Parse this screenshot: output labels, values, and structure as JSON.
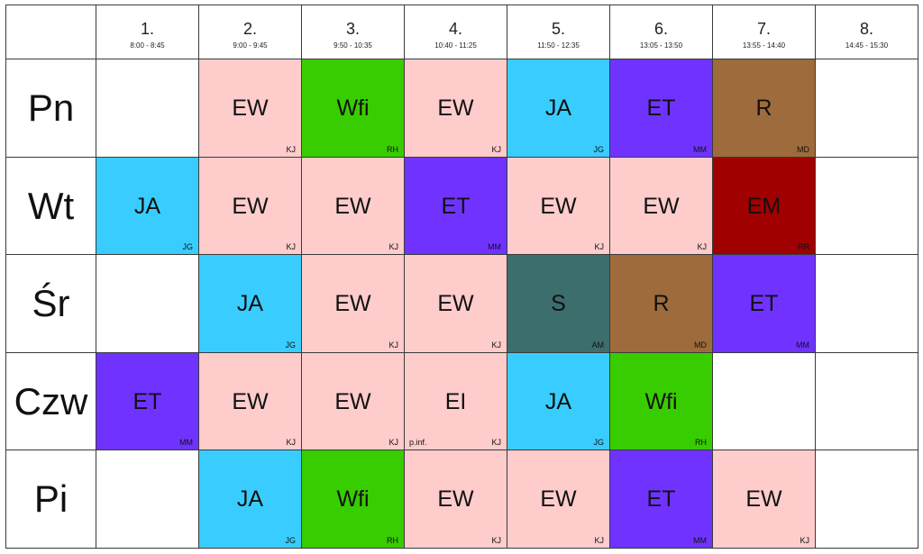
{
  "periods": [
    {
      "num": "1.",
      "time": "8:00 - 8:45"
    },
    {
      "num": "2.",
      "time": "9:00 - 9:45"
    },
    {
      "num": "3.",
      "time": "9:50 - 10:35"
    },
    {
      "num": "4.",
      "time": "10:40 - 11:25"
    },
    {
      "num": "5.",
      "time": "11:50 - 12:35"
    },
    {
      "num": "6.",
      "time": "13:05 - 13:50"
    },
    {
      "num": "7.",
      "time": "13:55 - 14:40"
    },
    {
      "num": "8.",
      "time": "14:45 - 15:30"
    }
  ],
  "colors": {
    "EW": "#ffcccc",
    "EI": "#ffcccc",
    "JA": "#39cdff",
    "Wfi": "#38cd00",
    "ET": "#7033ff",
    "R": "#9e6b3c",
    "EM": "#a10000",
    "S": "#3d6e6e"
  },
  "days": [
    {
      "label": "Pn",
      "cells": [
        null,
        {
          "subject": "EW",
          "teacher": "KJ"
        },
        {
          "subject": "Wfi",
          "teacher": "RH"
        },
        {
          "subject": "EW",
          "teacher": "KJ"
        },
        {
          "subject": "JA",
          "teacher": "JG"
        },
        {
          "subject": "ET",
          "teacher": "MM"
        },
        {
          "subject": "R",
          "teacher": "MD"
        },
        null
      ]
    },
    {
      "label": "Wt",
      "cells": [
        {
          "subject": "JA",
          "teacher": "JG"
        },
        {
          "subject": "EW",
          "teacher": "KJ"
        },
        {
          "subject": "EW",
          "teacher": "KJ"
        },
        {
          "subject": "ET",
          "teacher": "MM"
        },
        {
          "subject": "EW",
          "teacher": "KJ"
        },
        {
          "subject": "EW",
          "teacher": "KJ"
        },
        {
          "subject": "EM",
          "teacher": "RR"
        },
        null
      ]
    },
    {
      "label": "Śr",
      "cells": [
        null,
        {
          "subject": "JA",
          "teacher": "JG"
        },
        {
          "subject": "EW",
          "teacher": "KJ"
        },
        {
          "subject": "EW",
          "teacher": "KJ"
        },
        {
          "subject": "S",
          "teacher": "AM"
        },
        {
          "subject": "R",
          "teacher": "MD"
        },
        {
          "subject": "ET",
          "teacher": "MM"
        },
        null
      ]
    },
    {
      "label": "Czw",
      "cells": [
        {
          "subject": "ET",
          "teacher": "MM"
        },
        {
          "subject": "EW",
          "teacher": "KJ"
        },
        {
          "subject": "EW",
          "teacher": "KJ"
        },
        {
          "subject": "EI",
          "teacher": "KJ",
          "note": "p.inf."
        },
        {
          "subject": "JA",
          "teacher": "JG"
        },
        {
          "subject": "Wfi",
          "teacher": "RH"
        },
        null,
        null
      ]
    },
    {
      "label": "Pi",
      "cells": [
        null,
        {
          "subject": "JA",
          "teacher": "JG"
        },
        {
          "subject": "Wfi",
          "teacher": "RH"
        },
        {
          "subject": "EW",
          "teacher": "KJ"
        },
        {
          "subject": "EW",
          "teacher": "KJ"
        },
        {
          "subject": "ET",
          "teacher": "MM"
        },
        {
          "subject": "EW",
          "teacher": "KJ"
        },
        null
      ]
    }
  ]
}
